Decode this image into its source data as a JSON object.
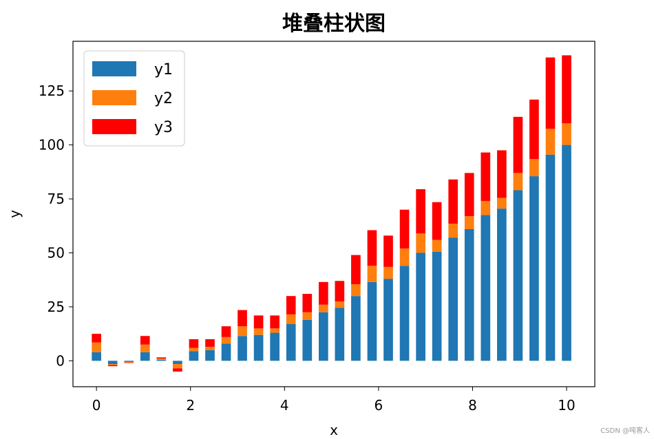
{
  "chart_data": {
    "type": "bar",
    "stacked": true,
    "title": "堆叠柱状图",
    "xlabel": "x",
    "ylabel": "y",
    "xlim": [
      -0.5,
      10.6
    ],
    "ylim": [
      -12,
      148
    ],
    "xticks": [
      0,
      2,
      4,
      6,
      8,
      10
    ],
    "yticks": [
      0,
      25,
      50,
      75,
      100,
      125
    ],
    "bar_width": 0.2,
    "grid": false,
    "legend_position": "top-left",
    "x": [
      0,
      0.345,
      0.69,
      1.034,
      1.379,
      1.724,
      2.069,
      2.414,
      2.759,
      3.103,
      3.448,
      3.793,
      4.138,
      4.483,
      4.828,
      5.172,
      5.517,
      5.862,
      6.207,
      6.552,
      6.897,
      7.241,
      7.586,
      7.931,
      8.276,
      8.621,
      8.966,
      9.31,
      9.655,
      10
    ],
    "series": [
      {
        "name": "y1",
        "color": "#1f77b4",
        "values": [
          4,
          -1.5,
          -0.5,
          4,
          0.5,
          -1.5,
          4.5,
          5,
          8,
          11.5,
          12,
          13,
          17,
          19,
          22.5,
          24.5,
          30,
          36.5,
          38,
          44,
          50,
          50.5,
          57,
          61,
          67.5,
          70.5,
          79,
          85.5,
          95.5,
          100
        ]
      },
      {
        "name": "y2",
        "color": "#ff7f0e",
        "values": [
          4.5,
          -0.5,
          -0.3,
          3.5,
          0.6,
          -2,
          1.5,
          1.5,
          3,
          4.5,
          3,
          2,
          4.5,
          3.5,
          3.5,
          3,
          5.5,
          7.5,
          5.5,
          8,
          9,
          5.5,
          6.5,
          6,
          6.5,
          5,
          8,
          8,
          12,
          10
        ]
      },
      {
        "name": "y3",
        "color": "#ff0000",
        "values": [
          4,
          -0.5,
          -0.2,
          4,
          0.5,
          -1.5,
          4,
          3.5,
          5,
          7.5,
          6,
          6,
          8.5,
          8.5,
          10.5,
          9.5,
          13.5,
          16.5,
          14.5,
          18,
          20.5,
          17.5,
          20.5,
          20,
          22.5,
          22,
          26,
          27.5,
          33,
          31.5
        ]
      }
    ]
  },
  "watermark": "CSDN @吨客人"
}
